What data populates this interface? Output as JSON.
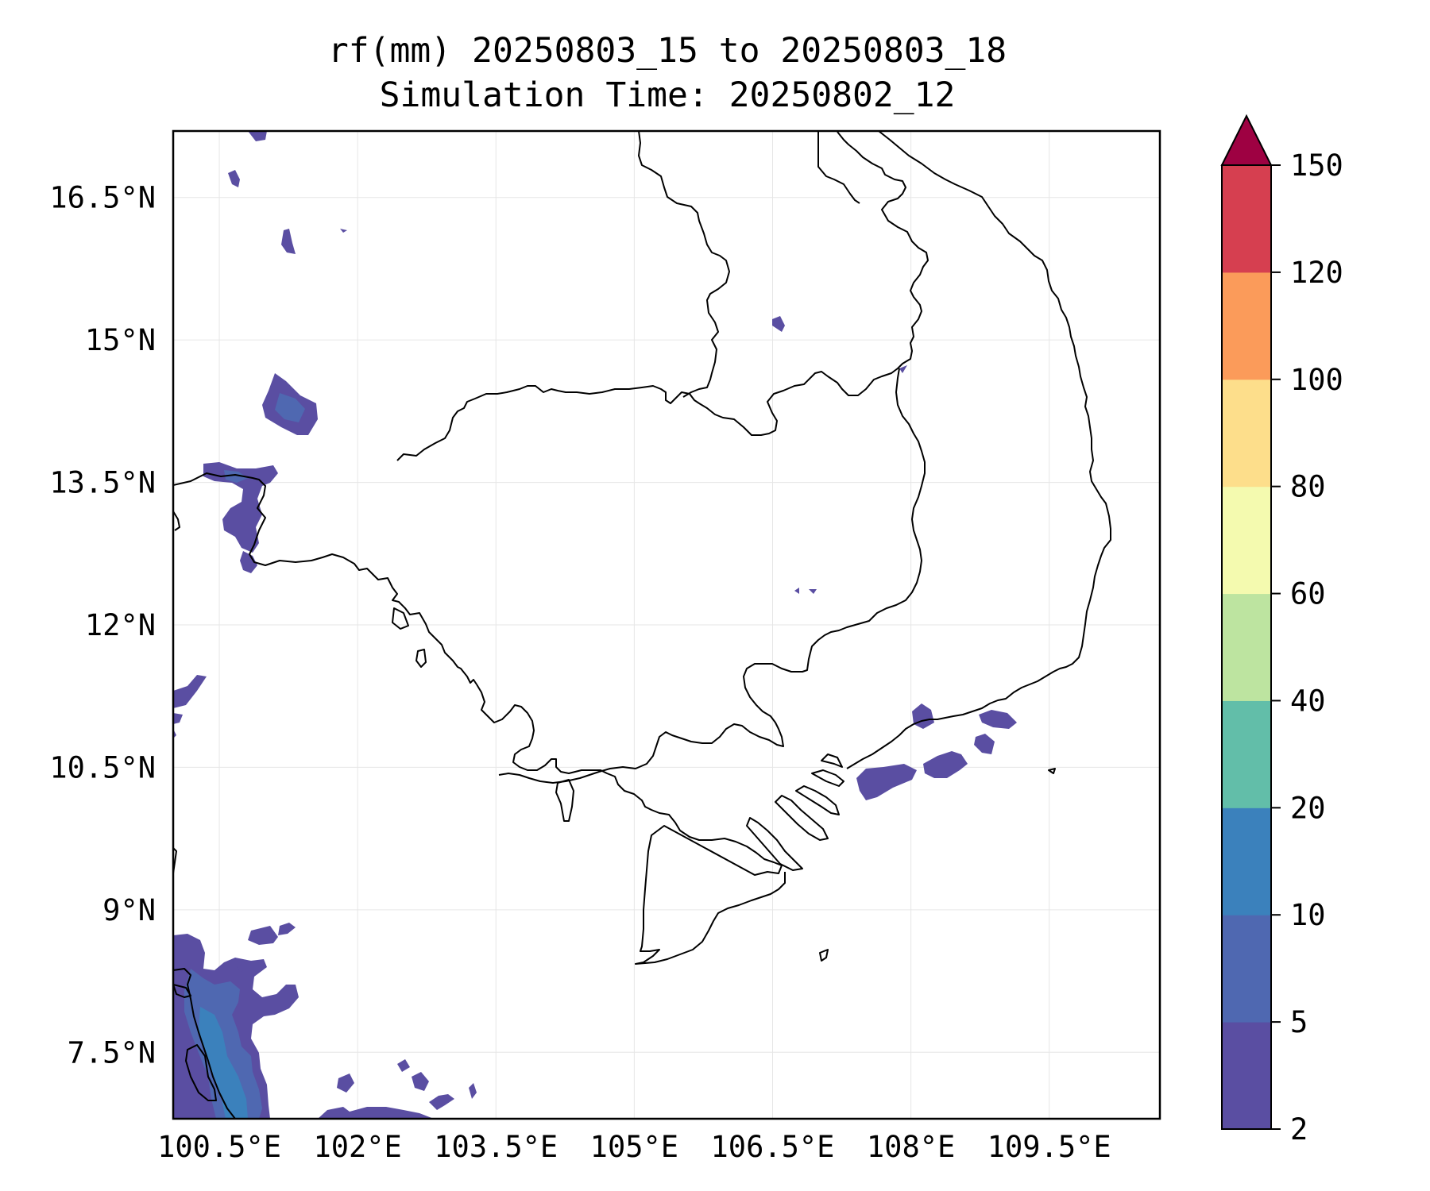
{
  "title": {
    "line1": "rf(mm) 20250803_15 to 20250803_18",
    "line2": "Simulation Time: 20250802_12"
  },
  "map": {
    "lon_range": [
      100.0,
      110.7
    ],
    "lat_range": [
      6.8,
      17.2
    ],
    "x_ticks": [
      {
        "value": 100.5,
        "label": "100.5°E"
      },
      {
        "value": 102.0,
        "label": "102°E"
      },
      {
        "value": 103.5,
        "label": "103.5°E"
      },
      {
        "value": 105.0,
        "label": "105°E"
      },
      {
        "value": 106.5,
        "label": "106.5°E"
      },
      {
        "value": 108.0,
        "label": "108°E"
      },
      {
        "value": 109.5,
        "label": "109.5°E"
      }
    ],
    "y_ticks": [
      {
        "value": 16.5,
        "label": "16.5°N"
      },
      {
        "value": 15.0,
        "label": "15°N"
      },
      {
        "value": 13.5,
        "label": "13.5°N"
      },
      {
        "value": 12.0,
        "label": "12°N"
      },
      {
        "value": 10.5,
        "label": "10.5°N"
      },
      {
        "value": 9.0,
        "label": "9°N"
      },
      {
        "value": 7.5,
        "label": "7.5°N"
      }
    ],
    "grid": true
  },
  "colorbar": {
    "levels": [
      {
        "label": "2",
        "color": "#5a4ea2"
      },
      {
        "label": "5",
        "color": "#4f68b1"
      },
      {
        "label": "10",
        "color": "#3b81bc"
      },
      {
        "label": "20",
        "color": "#62bea9"
      },
      {
        "label": "40",
        "color": "#bde4a0"
      },
      {
        "label": "60",
        "color": "#f4faaf"
      },
      {
        "label": "80",
        "color": "#fdde8b"
      },
      {
        "label": "100",
        "color": "#fb9b5a"
      },
      {
        "label": "120",
        "color": "#d63f50"
      },
      {
        "label": "150",
        "color": "#9e0142"
      }
    ],
    "extend": "max"
  },
  "colors": {
    "light_rain": "#5a4ea2",
    "moderate_rain": "#4f68b1",
    "heavy_rain": "#3b81bc",
    "outline": "#000000",
    "grid": "#e6e6e6"
  }
}
